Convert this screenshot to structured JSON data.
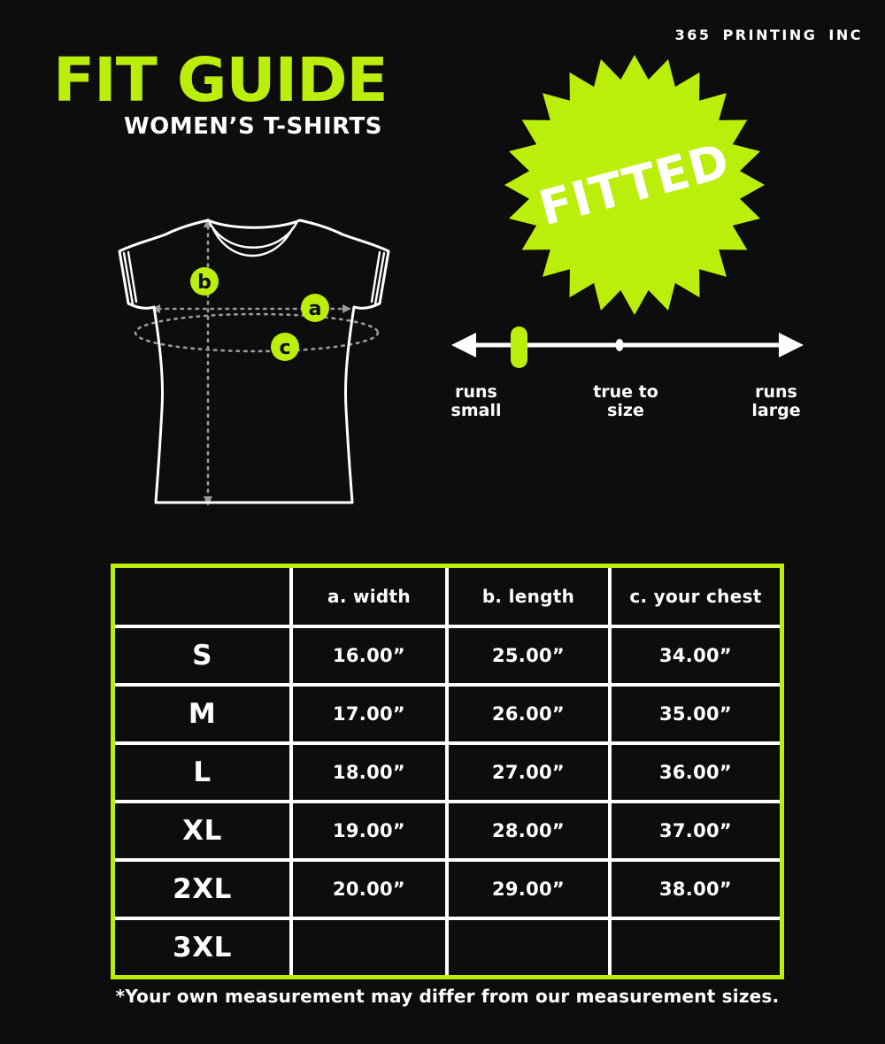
{
  "brand": "365 PRINTING INC",
  "header": {
    "title": "FIT GUIDE",
    "subtitle": "WOMEN’S T-SHIRTS"
  },
  "badge": {
    "label": "FITTED"
  },
  "fit_scale": {
    "labels": [
      {
        "line1": "runs",
        "line2": "small"
      },
      {
        "line1": "true to",
        "line2": "size"
      },
      {
        "line1": "runs",
        "line2": "large"
      }
    ],
    "marker_value": "runs small"
  },
  "diagram": {
    "markers": [
      "b",
      "a",
      "c"
    ]
  },
  "size_table": {
    "columns": [
      "",
      "a. width",
      "b. length",
      "c. your chest"
    ],
    "rows": [
      [
        "S",
        "16.00”",
        "25.00”",
        "34.00”"
      ],
      [
        "M",
        "17.00”",
        "26.00”",
        "35.00”"
      ],
      [
        "L",
        "18.00”",
        "27.00”",
        "36.00”"
      ],
      [
        "XL",
        "19.00”",
        "28.00”",
        "37.00”"
      ],
      [
        "2XL",
        "20.00”",
        "29.00”",
        "38.00”"
      ],
      [
        "3XL",
        "",
        "",
        ""
      ]
    ]
  },
  "footnote": "*Your own measurement may differ from our measurement sizes.",
  "colors": {
    "accent": "#bcee0b",
    "background": "#0d0d0d",
    "text": "#ffffff"
  }
}
